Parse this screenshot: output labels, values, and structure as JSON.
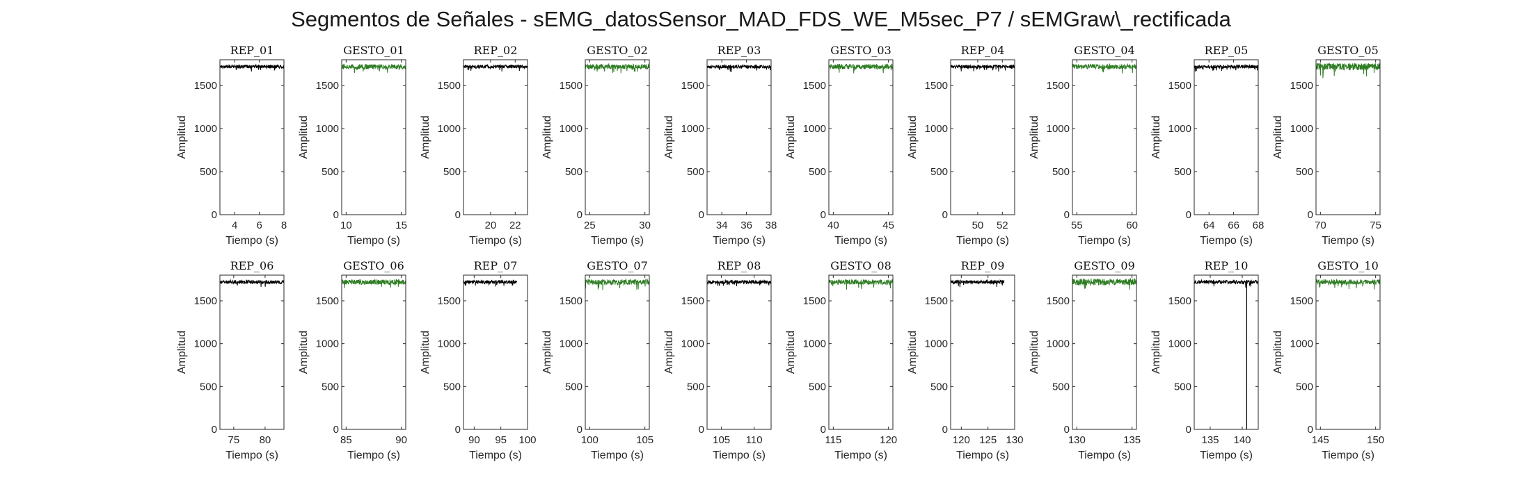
{
  "figure": {
    "title": "Segmentos de Señales - sEMG_datosSensor_MAD_FDS_WE_M5sec_P7 / sEMGraw\\_rectificada"
  },
  "colors": {
    "rep": "#000000",
    "gesto": "#2e7d23",
    "axis": "#262626"
  },
  "chart_data": [
    {
      "type": "line",
      "title": "REP_01",
      "xlabel": "Tiempo (s)",
      "ylabel": "Amplitud",
      "xlim": [
        2.8,
        8.0
      ],
      "xticks": [
        4,
        6,
        8
      ],
      "ylim": [
        0,
        1800
      ],
      "yticks": [
        0,
        500,
        1000,
        1500
      ],
      "series": [
        {
          "name": "",
          "color": "#000000",
          "baseline": 1720,
          "noise": 20
        }
      ]
    },
    {
      "type": "line",
      "title": "GESTO_01",
      "xlabel": "Tiempo (s)",
      "ylabel": "Amplitud",
      "xlim": [
        9.6,
        15.4
      ],
      "xticks": [
        10,
        15
      ],
      "ylim": [
        0,
        1800
      ],
      "yticks": [
        0,
        500,
        1000,
        1500
      ],
      "series": [
        {
          "name": "",
          "color": "#2e7d23",
          "baseline": 1720,
          "noise": 28
        }
      ]
    },
    {
      "type": "line",
      "title": "REP_02",
      "xlabel": "Tiempo (s)",
      "ylabel": "Amplitud",
      "xlim": [
        17.8,
        23.0
      ],
      "xticks": [
        20,
        22
      ],
      "ylim": [
        0,
        1800
      ],
      "yticks": [
        0,
        500,
        1000,
        1500
      ],
      "series": [
        {
          "name": "",
          "color": "#000000",
          "baseline": 1720,
          "noise": 20
        }
      ]
    },
    {
      "type": "line",
      "title": "GESTO_02",
      "xlabel": "Tiempo (s)",
      "ylabel": "Amplitud",
      "xlim": [
        24.6,
        30.4
      ],
      "xticks": [
        25,
        30
      ],
      "ylim": [
        0,
        1800
      ],
      "yticks": [
        0,
        500,
        1000,
        1500
      ],
      "series": [
        {
          "name": "",
          "color": "#2e7d23",
          "baseline": 1720,
          "noise": 28
        }
      ]
    },
    {
      "type": "line",
      "title": "REP_03",
      "xlabel": "Tiempo (s)",
      "ylabel": "Amplitud",
      "xlim": [
        32.8,
        38.0
      ],
      "xticks": [
        34,
        36,
        38
      ],
      "ylim": [
        0,
        1800
      ],
      "yticks": [
        0,
        500,
        1000,
        1500
      ],
      "series": [
        {
          "name": "",
          "color": "#000000",
          "baseline": 1720,
          "noise": 20
        }
      ]
    },
    {
      "type": "line",
      "title": "GESTO_03",
      "xlabel": "Tiempo (s)",
      "ylabel": "Amplitud",
      "xlim": [
        39.6,
        45.4
      ],
      "xticks": [
        40,
        45
      ],
      "ylim": [
        0,
        1800
      ],
      "yticks": [
        0,
        500,
        1000,
        1500
      ],
      "series": [
        {
          "name": "",
          "color": "#2e7d23",
          "baseline": 1720,
          "noise": 30
        }
      ]
    },
    {
      "type": "line",
      "title": "REP_04",
      "xlabel": "Tiempo (s)",
      "ylabel": "Amplitud",
      "xlim": [
        47.8,
        53.0
      ],
      "xticks": [
        50,
        52
      ],
      "ylim": [
        0,
        1800
      ],
      "yticks": [
        0,
        500,
        1000,
        1500
      ],
      "series": [
        {
          "name": "",
          "color": "#000000",
          "baseline": 1720,
          "noise": 20
        }
      ]
    },
    {
      "type": "line",
      "title": "GESTO_04",
      "xlabel": "Tiempo (s)",
      "ylabel": "Amplitud",
      "xlim": [
        54.6,
        60.4
      ],
      "xticks": [
        55,
        60
      ],
      "ylim": [
        0,
        1800
      ],
      "yticks": [
        0,
        500,
        1000,
        1500
      ],
      "series": [
        {
          "name": "",
          "color": "#2e7d23",
          "baseline": 1720,
          "noise": 28
        }
      ]
    },
    {
      "type": "line",
      "title": "REP_05",
      "xlabel": "Tiempo (s)",
      "ylabel": "Amplitud",
      "xlim": [
        62.8,
        68.0
      ],
      "xticks": [
        64,
        66,
        68
      ],
      "ylim": [
        0,
        1800
      ],
      "yticks": [
        0,
        500,
        1000,
        1500
      ],
      "series": [
        {
          "name": "",
          "color": "#000000",
          "baseline": 1720,
          "noise": 20
        }
      ]
    },
    {
      "type": "line",
      "title": "GESTO_05",
      "xlabel": "Tiempo (s)",
      "ylabel": "Amplitud",
      "xlim": [
        69.6,
        75.4
      ],
      "xticks": [
        70,
        75
      ],
      "ylim": [
        0,
        1800
      ],
      "yticks": [
        0,
        500,
        1000,
        1500
      ],
      "series": [
        {
          "name": "",
          "color": "#2e7d23",
          "baseline": 1720,
          "noise": 40
        }
      ]
    },
    {
      "type": "line",
      "title": "REP_06",
      "xlabel": "Tiempo (s)",
      "ylabel": "Amplitud",
      "xlim": [
        72.8,
        83.0
      ],
      "xticks": [
        75,
        80
      ],
      "ylim": [
        0,
        1800
      ],
      "yticks": [
        0,
        500,
        1000,
        1500
      ],
      "series": [
        {
          "name": "",
          "color": "#000000",
          "baseline": 1720,
          "noise": 22
        }
      ]
    },
    {
      "type": "line",
      "title": "GESTO_06",
      "xlabel": "Tiempo (s)",
      "ylabel": "Amplitud",
      "xlim": [
        84.6,
        90.4
      ],
      "xticks": [
        85,
        90
      ],
      "ylim": [
        0,
        1800
      ],
      "yticks": [
        0,
        500,
        1000,
        1500
      ],
      "series": [
        {
          "name": "",
          "color": "#2e7d23",
          "baseline": 1720,
          "noise": 30
        }
      ]
    },
    {
      "type": "line",
      "title": "REP_07",
      "xlabel": "Tiempo (s)",
      "ylabel": "Amplitud",
      "xlim": [
        88.0,
        100.0
      ],
      "xticks": [
        90,
        95,
        100
      ],
      "ylim": [
        0,
        1800
      ],
      "yticks": [
        0,
        500,
        1000,
        1500
      ],
      "series": [
        {
          "name": "",
          "color": "#000000",
          "baseline": 1720,
          "noise": 20,
          "x_end": 98
        }
      ]
    },
    {
      "type": "line",
      "title": "GESTO_07",
      "xlabel": "Tiempo (s)",
      "ylabel": "Amplitud",
      "xlim": [
        99.6,
        105.4
      ],
      "xticks": [
        100,
        105
      ],
      "ylim": [
        0,
        1800
      ],
      "yticks": [
        0,
        500,
        1000,
        1500
      ],
      "series": [
        {
          "name": "",
          "color": "#2e7d23",
          "baseline": 1720,
          "noise": 32
        }
      ]
    },
    {
      "type": "line",
      "title": "REP_08",
      "xlabel": "Tiempo (s)",
      "ylabel": "Amplitud",
      "xlim": [
        102.8,
        112.6
      ],
      "xticks": [
        105,
        110
      ],
      "ylim": [
        0,
        1800
      ],
      "yticks": [
        0,
        500,
        1000,
        1500
      ],
      "series": [
        {
          "name": "",
          "color": "#000000",
          "baseline": 1720,
          "noise": 22
        }
      ]
    },
    {
      "type": "line",
      "title": "GESTO_08",
      "xlabel": "Tiempo (s)",
      "ylabel": "Amplitud",
      "xlim": [
        114.6,
        120.4
      ],
      "xticks": [
        115,
        120
      ],
      "ylim": [
        0,
        1800
      ],
      "yticks": [
        0,
        500,
        1000,
        1500
      ],
      "series": [
        {
          "name": "",
          "color": "#2e7d23",
          "baseline": 1720,
          "noise": 30
        }
      ]
    },
    {
      "type": "line",
      "title": "REP_09",
      "xlabel": "Tiempo (s)",
      "ylabel": "Amplitud",
      "xlim": [
        118.0,
        130.0
      ],
      "xticks": [
        120,
        125,
        130
      ],
      "ylim": [
        0,
        1800
      ],
      "yticks": [
        0,
        500,
        1000,
        1500
      ],
      "series": [
        {
          "name": "",
          "color": "#000000",
          "baseline": 1720,
          "noise": 22,
          "x_end": 128
        }
      ]
    },
    {
      "type": "line",
      "title": "GESTO_09",
      "xlabel": "Tiempo (s)",
      "ylabel": "Amplitud",
      "xlim": [
        129.6,
        135.4
      ],
      "xticks": [
        130,
        135
      ],
      "ylim": [
        0,
        1800
      ],
      "yticks": [
        0,
        500,
        1000,
        1500
      ],
      "series": [
        {
          "name": "",
          "color": "#2e7d23",
          "baseline": 1720,
          "noise": 40
        }
      ]
    },
    {
      "type": "line",
      "title": "REP_10",
      "xlabel": "Tiempo (s)",
      "ylabel": "Amplitud",
      "xlim": [
        132.5,
        142.5
      ],
      "xticks": [
        135,
        140
      ],
      "ylim": [
        0,
        1800
      ],
      "yticks": [
        0,
        500,
        1000,
        1500
      ],
      "series": [
        {
          "name": "",
          "color": "#000000",
          "baseline": 1720,
          "noise": 22,
          "spike_x": 140.7,
          "spike_min": 0
        }
      ]
    },
    {
      "type": "line",
      "title": "GESTO_10",
      "xlabel": "Tiempo (s)",
      "ylabel": "Amplitud",
      "xlim": [
        144.6,
        150.4
      ],
      "xticks": [
        145,
        150
      ],
      "ylim": [
        0,
        1800
      ],
      "yticks": [
        0,
        500,
        1000,
        1500
      ],
      "series": [
        {
          "name": "",
          "color": "#2e7d23",
          "baseline": 1720,
          "noise": 30
        }
      ]
    }
  ]
}
